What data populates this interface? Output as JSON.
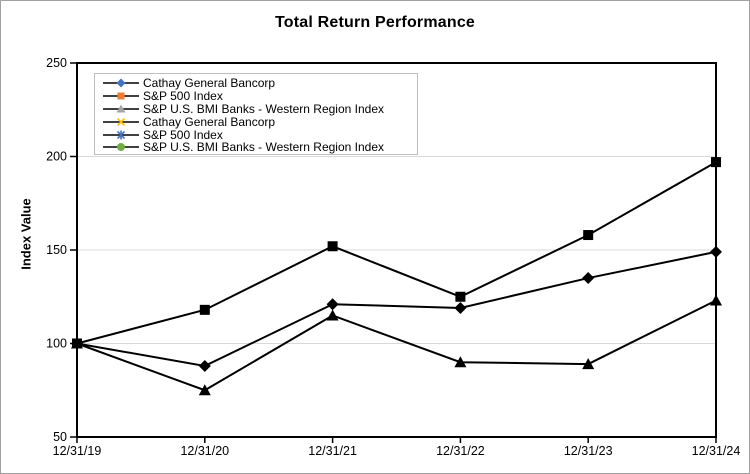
{
  "chart_data": {
    "type": "line",
    "title": "Total Return Performance",
    "ylabel": "Index Value",
    "xlabel": "",
    "categories": [
      "12/31/19",
      "12/31/20",
      "12/31/21",
      "12/31/22",
      "12/31/23",
      "12/31/24"
    ],
    "series": [
      {
        "name": "Cathay General Bancorp",
        "marker": "diamond",
        "values": [
          100,
          88,
          121,
          119,
          135,
          149
        ]
      },
      {
        "name": "S&P 500 Index",
        "marker": "square",
        "values": [
          100,
          118,
          152,
          125,
          158,
          197
        ]
      },
      {
        "name": "S&P U.S. BMI Banks - Western Region Index",
        "marker": "triangle",
        "values": [
          100,
          75,
          115,
          90,
          89,
          123
        ]
      }
    ],
    "ylim": [
      50,
      250
    ],
    "yticks": [
      50,
      100,
      150,
      200,
      250
    ],
    "grid": true,
    "legend_position": "top-left-inside",
    "line_color": "#000000",
    "gridline_color": "#d9d9d9",
    "axis_color": "#000000"
  },
  "legend": {
    "entries": [
      {
        "label": "Cathay General Bancorp",
        "marker": "diamond",
        "color": "#4472C4"
      },
      {
        "label": "S&P 500 Index",
        "marker": "square",
        "color": "#ED7D31"
      },
      {
        "label": "S&P U.S. BMI Banks - Western Region Index",
        "marker": "triangle",
        "color": "#A5A5A5"
      },
      {
        "label": "Cathay General Bancorp",
        "marker": "x",
        "color": "#FFC000"
      },
      {
        "label": "S&P 500 Index",
        "marker": "asterisk",
        "color": "#4472C4"
      },
      {
        "label": "S&P U.S. BMI Banks - Western Region Index",
        "marker": "circle",
        "color": "#70AD47"
      }
    ]
  }
}
